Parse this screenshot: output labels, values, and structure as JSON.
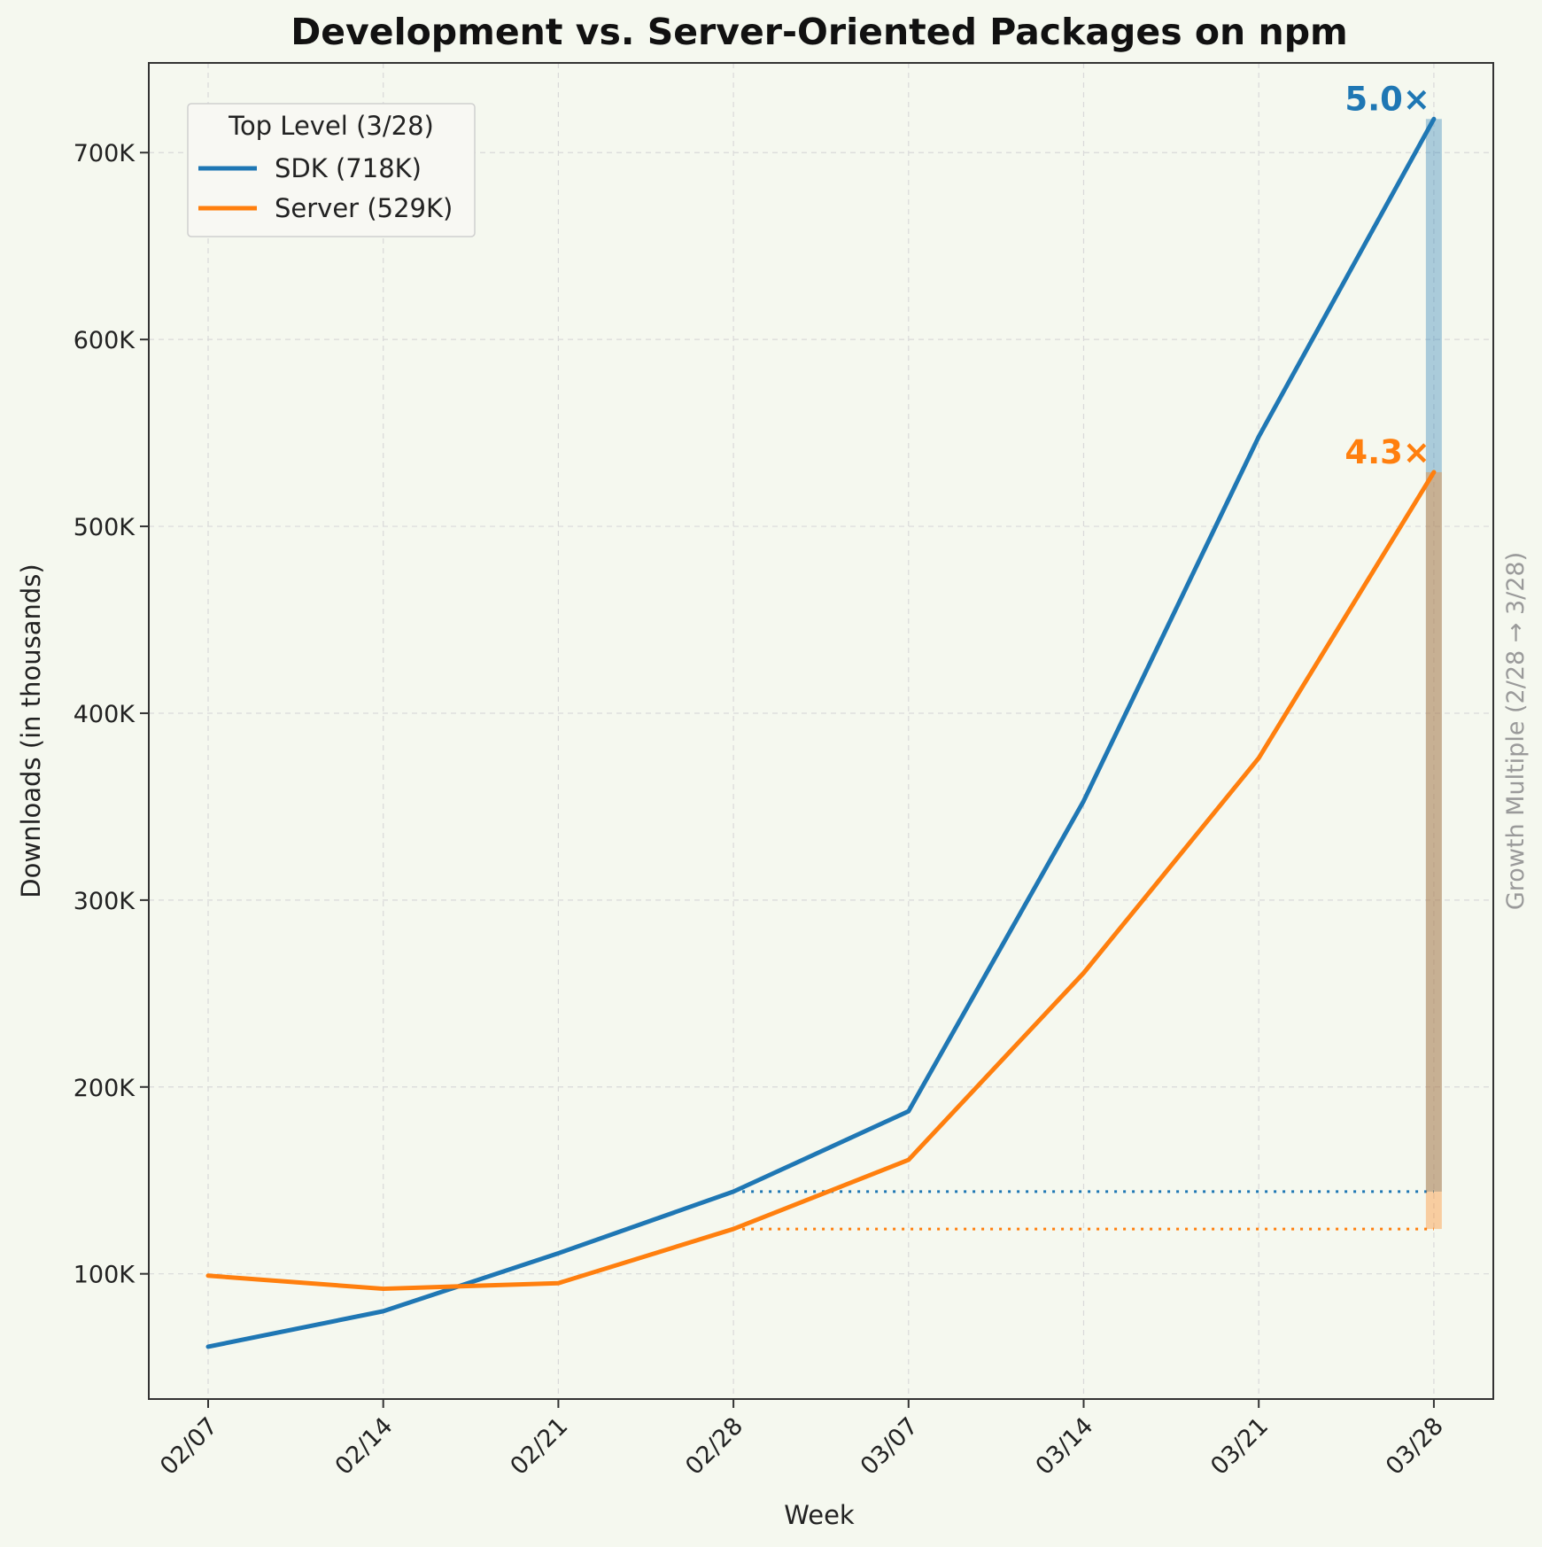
{
  "chart_data": {
    "type": "line",
    "title": "Development vs. Server-Oriented Packages on npm",
    "xlabel": "Week",
    "ylabel": "Downloads (in thousands)",
    "secondary_label": "Growth Multiple (2/28 → 3/28)",
    "categories": [
      "02/07",
      "02/14",
      "02/21",
      "02/28",
      "03/07",
      "03/14",
      "03/21",
      "03/28"
    ],
    "ylim": [
      33,
      748
    ],
    "yticks": [
      100,
      200,
      300,
      400,
      500,
      600,
      700
    ],
    "ytick_labels": [
      "100K",
      "200K",
      "300K",
      "400K",
      "500K",
      "600K",
      "700K"
    ],
    "grid": true,
    "legend": {
      "title": "Top Level (3/28)",
      "position": "top-left"
    },
    "series": [
      {
        "name": "SDK (718K)",
        "color": "#1f77b4",
        "values": [
          61,
          80,
          111,
          144,
          187,
          353,
          548,
          718
        ],
        "baseline": 144,
        "multiple_label": "5.0×"
      },
      {
        "name": "Server (529K)",
        "color": "#ff7f0e",
        "values": [
          99,
          92,
          95,
          124,
          161,
          261,
          376,
          529
        ],
        "baseline": 124,
        "multiple_label": "4.3×"
      }
    ]
  }
}
